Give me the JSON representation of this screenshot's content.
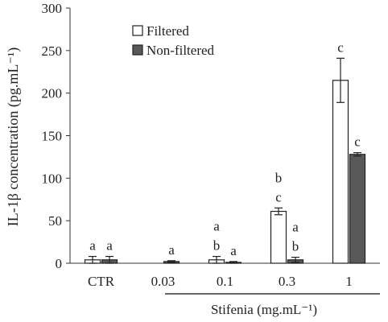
{
  "chart_data": {
    "type": "bar",
    "ylabel": "IL-1β concentration (pg.mL⁻¹)",
    "ylim": [
      0,
      300
    ],
    "y_ticks": [
      "0",
      "50",
      "100",
      "150",
      "200",
      "250",
      "300"
    ],
    "categories": [
      "CTR",
      "0.03",
      "0.1",
      "0.3",
      "1"
    ],
    "group_label": "Stifenia (mg.mL⁻¹)",
    "legend_position": "top-center",
    "grid": false,
    "series": [
      {
        "name": "Filtered",
        "color": "#ffffff",
        "values": [
          4,
          0,
          4,
          61,
          215
        ],
        "errors": [
          4,
          0,
          4,
          4,
          26
        ],
        "sig_labels": [
          [
            "a"
          ],
          [],
          [
            "a",
            "b"
          ],
          [
            "b",
            "c"
          ],
          [
            "c"
          ]
        ]
      },
      {
        "name": "Non-filtered",
        "color": "#595959",
        "values": [
          4,
          2,
          1,
          4,
          128
        ],
        "errors": [
          4,
          1,
          1,
          3,
          2
        ],
        "sig_labels": [
          [
            "a"
          ],
          [
            "a"
          ],
          [
            "a"
          ],
          [
            "a",
            "b"
          ],
          [
            "c"
          ]
        ]
      }
    ]
  }
}
